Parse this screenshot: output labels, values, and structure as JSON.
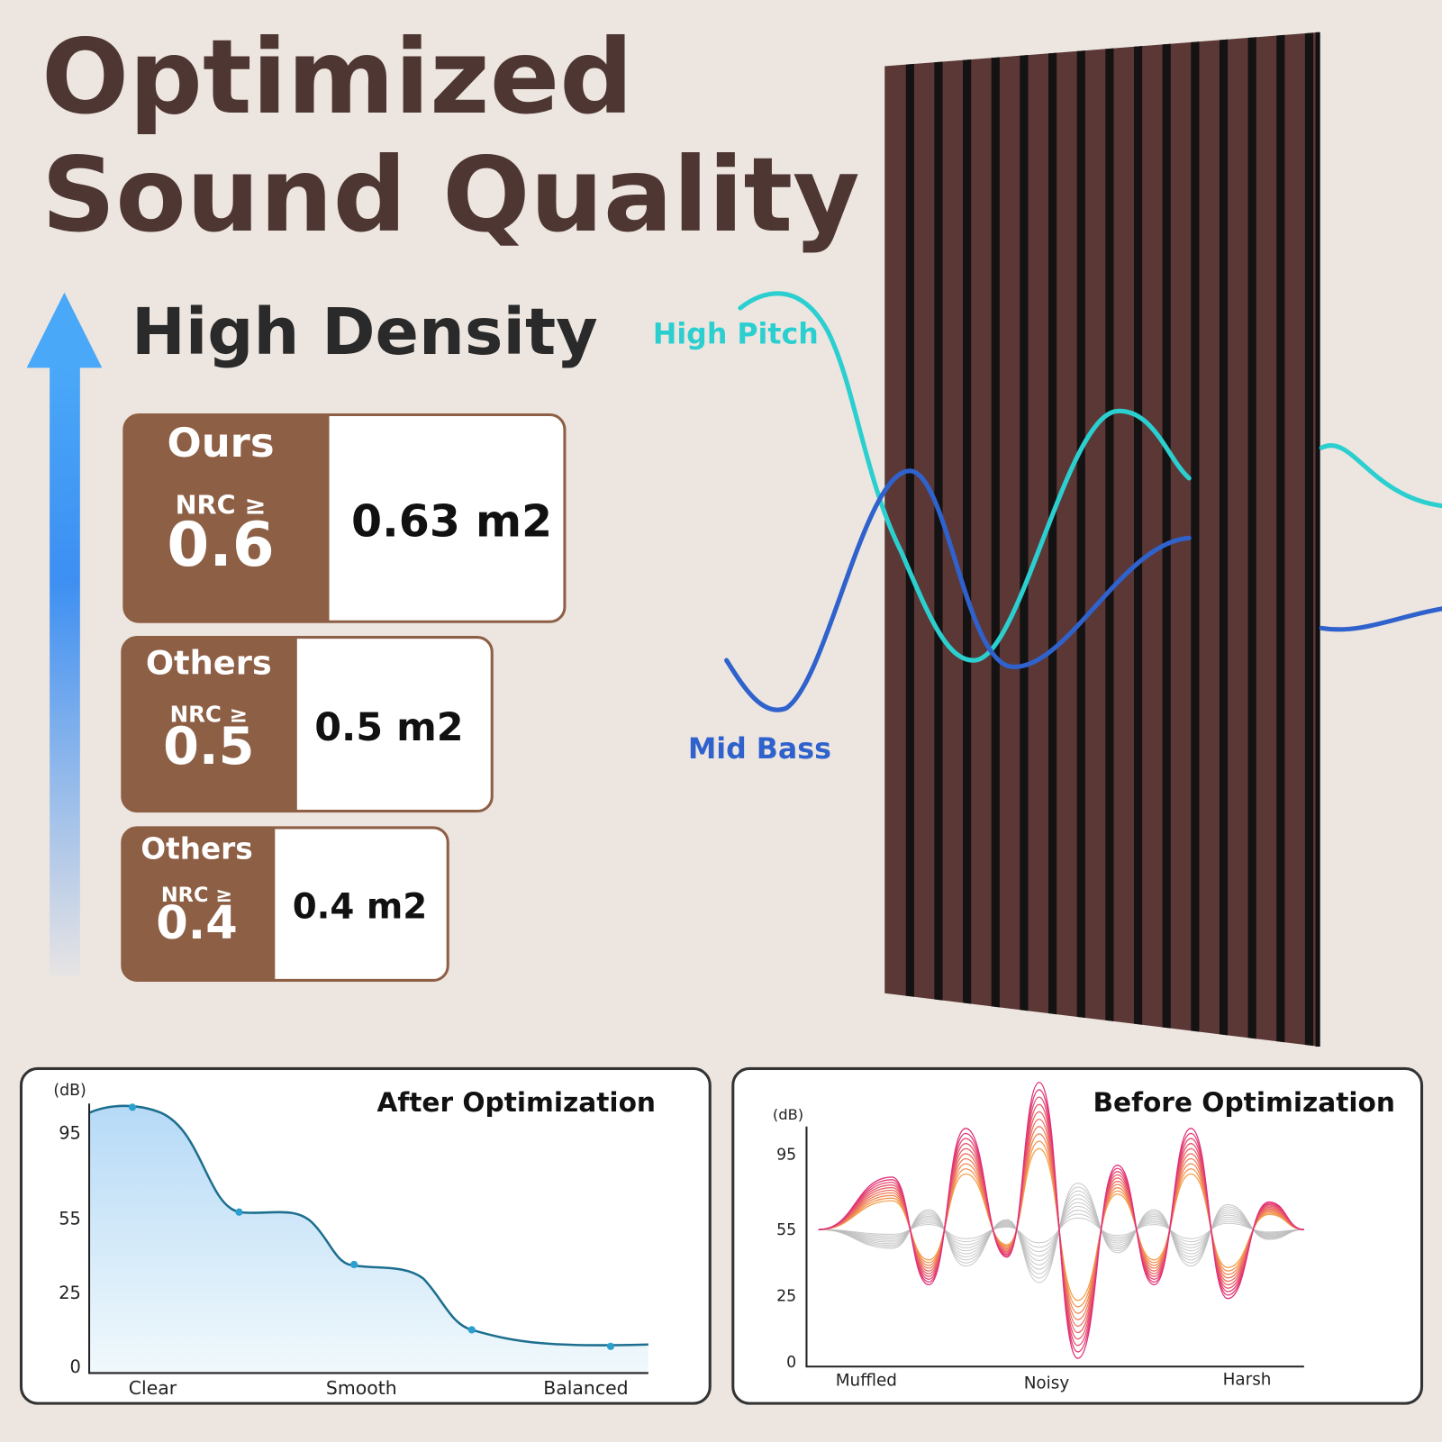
{
  "title": [
    "Optimized",
    "Sound Quality"
  ],
  "density_label": "High Density",
  "comparisons": [
    {
      "brand": "Ours",
      "nrc_prefix": "NRC ≥",
      "nrc": "0.6",
      "area": "0.63 m2"
    },
    {
      "brand": "Others",
      "nrc_prefix": "NRC ≥",
      "nrc": "0.5",
      "area": "0.5 m2"
    },
    {
      "brand": "Others",
      "nrc_prefix": "NRC ≥",
      "nrc": "0.4",
      "area": "0.4 m2"
    }
  ],
  "waves": {
    "high": "High Pitch",
    "low": "Mid Bass"
  },
  "after_chart": {
    "title": "After Optimization",
    "unit": "(dB)",
    "yticks": [
      "95",
      "55",
      "25",
      "0"
    ],
    "categories": [
      "Clear",
      "Smooth",
      "Balanced"
    ]
  },
  "before_chart": {
    "title": "Before Optimization",
    "unit": "(dB)",
    "yticks": [
      "95",
      "55",
      "25",
      "0"
    ],
    "categories": [
      "Muffled",
      "Noisy",
      "Harsh"
    ]
  }
}
